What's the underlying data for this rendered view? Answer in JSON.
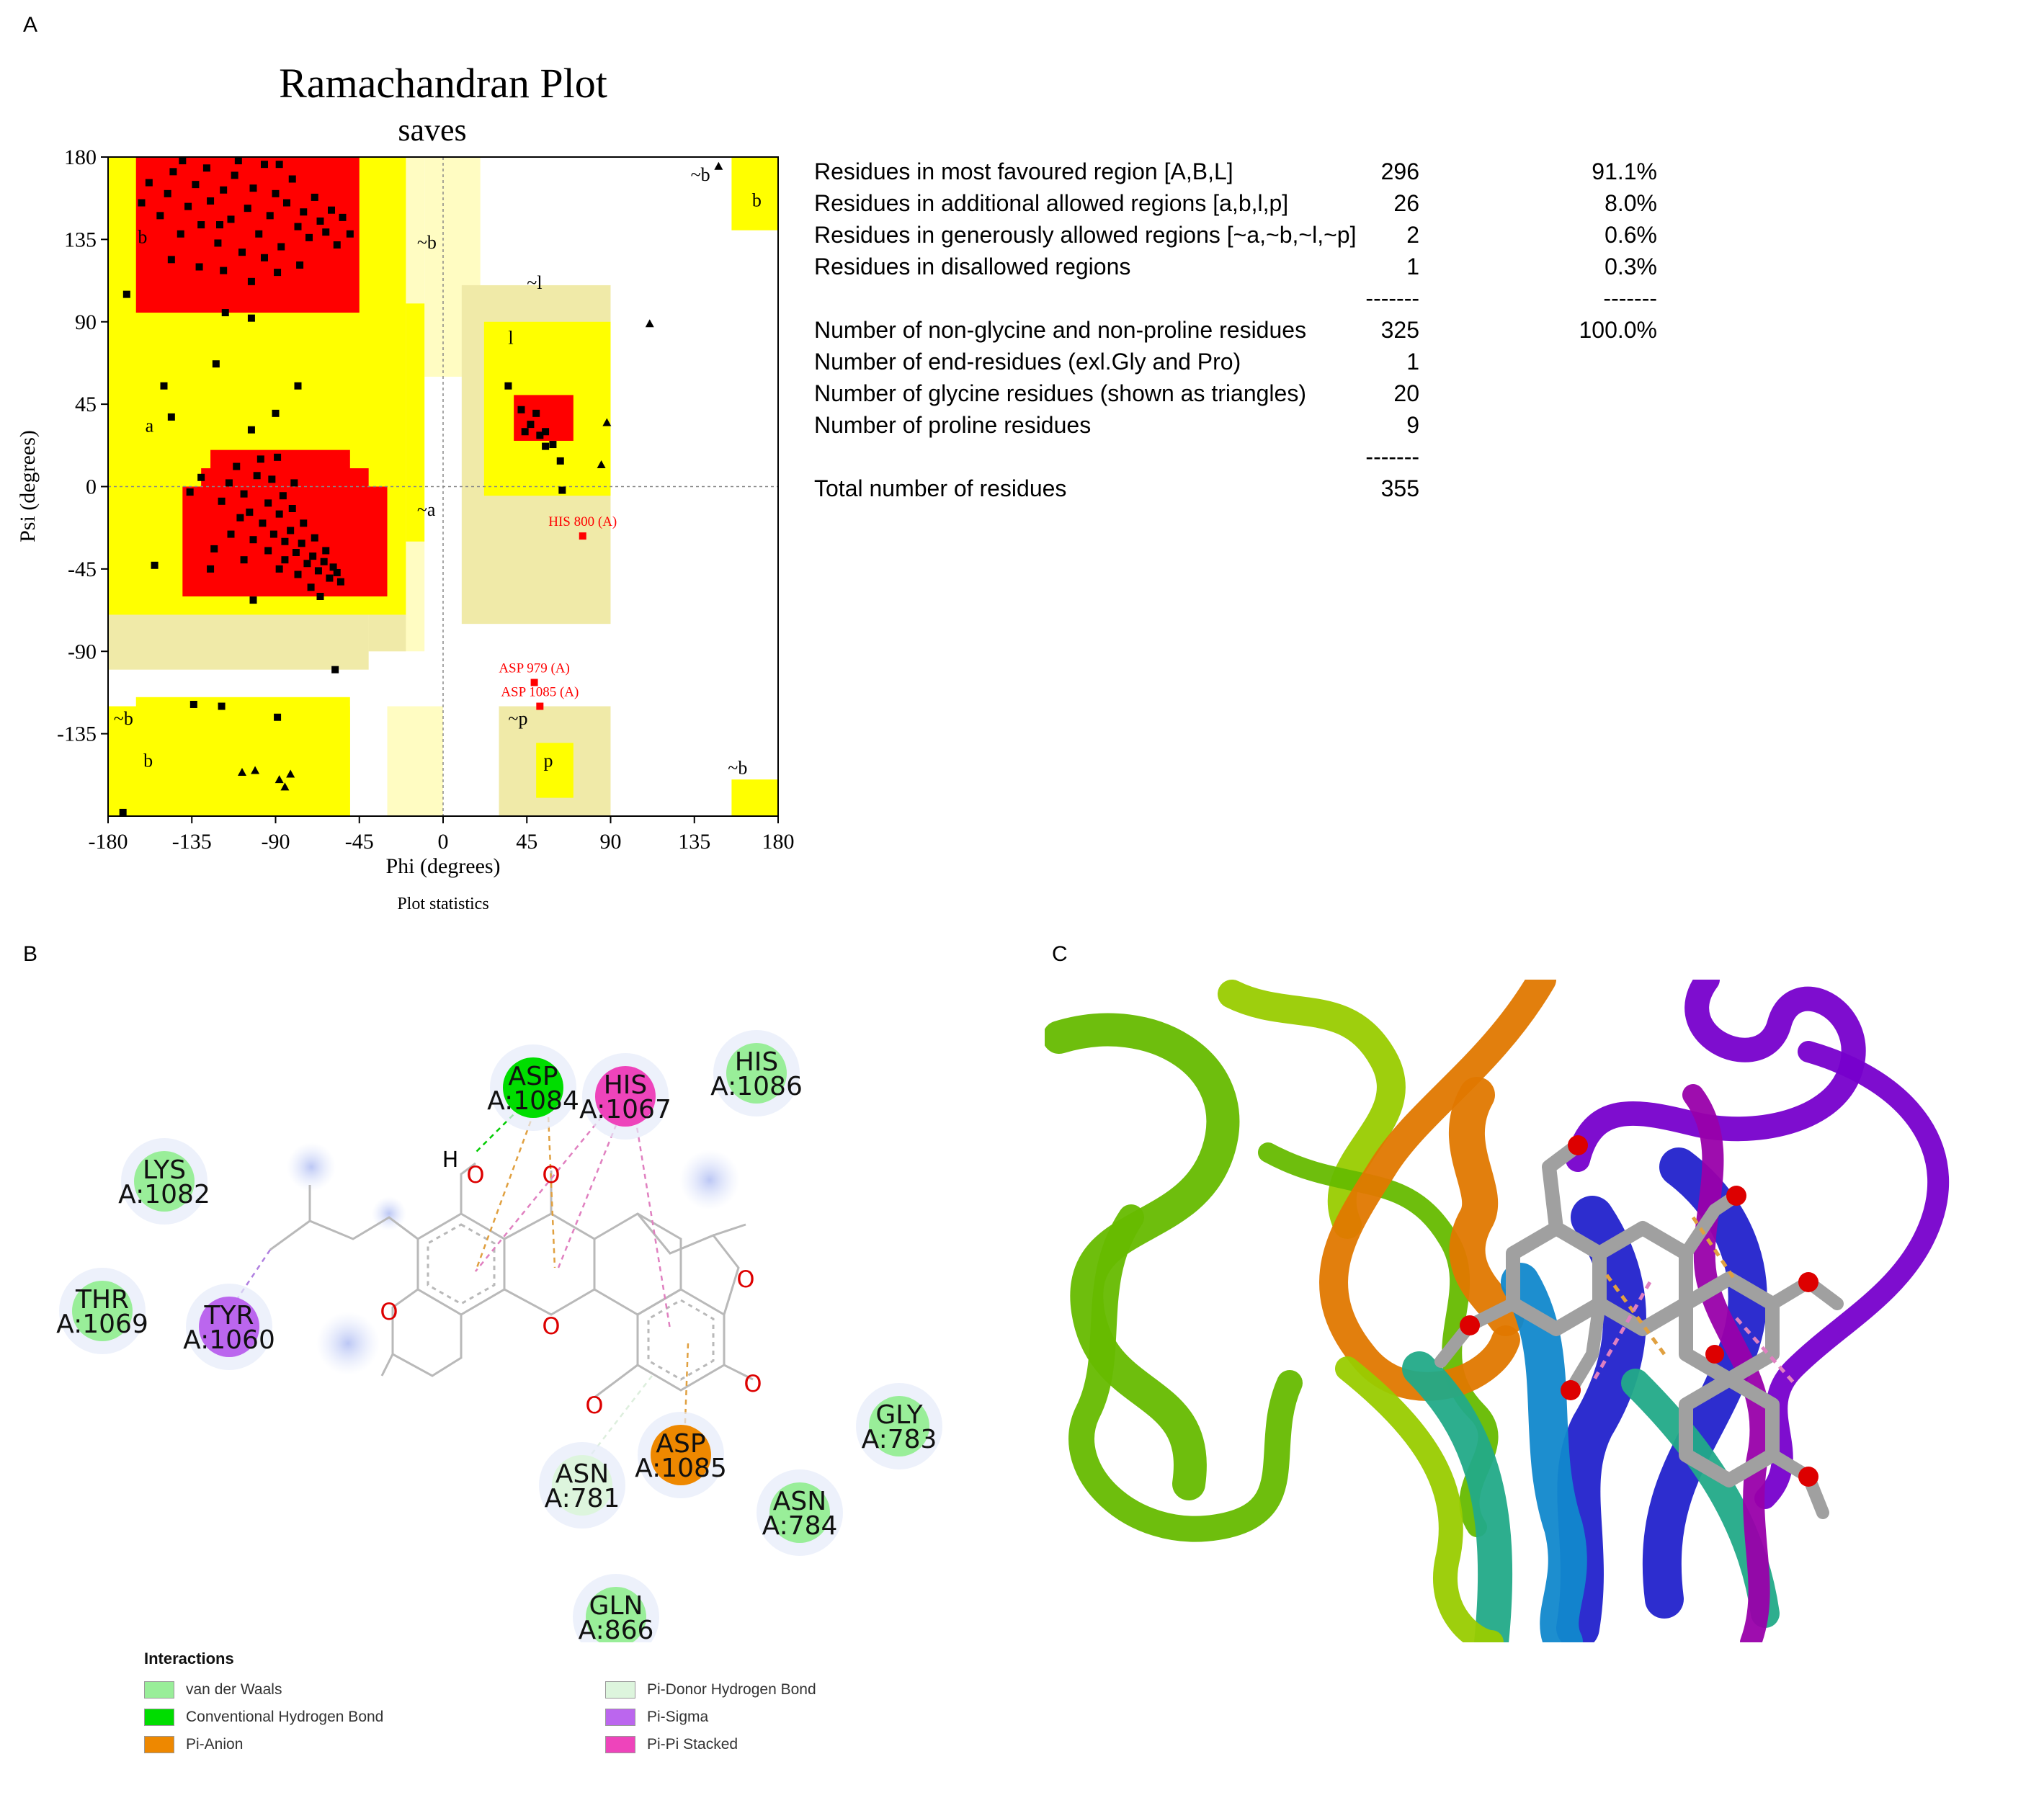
{
  "panels": {
    "a": "A",
    "b": "B",
    "c": "C"
  },
  "colors": {
    "core": "#ff0000",
    "allowed": "#ffff00",
    "generous": "#f0eaa8",
    "outer": "#fffcc2",
    "point": "#000000",
    "outlier": "#ff0000"
  },
  "chart_data": {
    "type": "scatter",
    "title": "Ramachandran Plot",
    "subtitle": "saves",
    "xlabel": "Phi (degrees)",
    "ylabel": "Psi (degrees)",
    "caption": "Plot statistics",
    "xlim": [
      -180,
      180
    ],
    "ylim": [
      -180,
      180
    ],
    "x_ticks": [
      "-180",
      "-135",
      "-90",
      "-45",
      "0",
      "45",
      "90",
      "135",
      "180"
    ],
    "y_ticks": [
      "180",
      "135",
      "90",
      "45",
      "0",
      "-45",
      "-90",
      "-135"
    ],
    "region_labels": [
      {
        "text": "b",
        "phi": -164,
        "psi": 133
      },
      {
        "text": "a",
        "phi": -160,
        "psi": 30
      },
      {
        "text": "~b",
        "phi": -14,
        "psi": 130
      },
      {
        "text": "~a",
        "phi": -14,
        "psi": -16
      },
      {
        "text": "~l",
        "phi": 45,
        "psi": 108
      },
      {
        "text": "l",
        "phi": 35,
        "psi": 78
      },
      {
        "text": "~p",
        "phi": 35,
        "psi": -130
      },
      {
        "text": "p",
        "phi": 54,
        "psi": -153
      },
      {
        "text": "~b",
        "phi": -177,
        "psi": -130
      },
      {
        "text": "b",
        "phi": -161,
        "psi": -153
      },
      {
        "text": "~b",
        "phi": 133,
        "psi": 167
      },
      {
        "text": "b",
        "phi": 166,
        "psi": 153
      },
      {
        "text": "~b",
        "phi": 153,
        "psi": -157
      }
    ],
    "labeled_outliers": [
      {
        "name": "HIS 800 (A)",
        "phi": 75,
        "psi": -27
      },
      {
        "name": "ASP 979 (A)",
        "phi": 49,
        "psi": -107
      },
      {
        "name": "ASP 1085 (A)",
        "phi": 52,
        "psi": -120
      }
    ],
    "residues": [
      [
        -162,
        155
      ],
      [
        -158,
        166
      ],
      [
        -152,
        148
      ],
      [
        -148,
        160
      ],
      [
        -145,
        172
      ],
      [
        -141,
        138
      ],
      [
        -137,
        153
      ],
      [
        -133,
        165
      ],
      [
        -130,
        143
      ],
      [
        -127,
        174
      ],
      [
        -125,
        156
      ],
      [
        -121,
        133
      ],
      [
        -118,
        162
      ],
      [
        -114,
        146
      ],
      [
        -112,
        170
      ],
      [
        -108,
        128
      ],
      [
        -105,
        152
      ],
      [
        -102,
        163
      ],
      [
        -99,
        138
      ],
      [
        -96,
        176
      ],
      [
        -93,
        148
      ],
      [
        -90,
        160
      ],
      [
        -87,
        131
      ],
      [
        -84,
        155
      ],
      [
        -81,
        168
      ],
      [
        -78,
        142
      ],
      [
        -75,
        150
      ],
      [
        -72,
        136
      ],
      [
        -69,
        158
      ],
      [
        -66,
        145
      ],
      [
        -63,
        139
      ],
      [
        -60,
        151
      ],
      [
        -57,
        132
      ],
      [
        -54,
        147
      ],
      [
        -50,
        138
      ],
      [
        -146,
        124
      ],
      [
        -131,
        120
      ],
      [
        -118,
        118
      ],
      [
        -103,
        112
      ],
      [
        -89,
        117
      ],
      [
        -77,
        121
      ],
      [
        -120,
        143
      ],
      [
        -96,
        125
      ],
      [
        -110,
        178
      ],
      [
        -140,
        178
      ],
      [
        -88,
        176
      ],
      [
        -119,
        -8
      ],
      [
        -115,
        2
      ],
      [
        -111,
        11
      ],
      [
        -107,
        -4
      ],
      [
        -104,
        -14
      ],
      [
        -100,
        6
      ],
      [
        -97,
        -20
      ],
      [
        -94,
        -9
      ],
      [
        -91,
        -26
      ],
      [
        -88,
        -15
      ],
      [
        -85,
        -30
      ],
      [
        -82,
        -24
      ],
      [
        -79,
        -36
      ],
      [
        -76,
        -31
      ],
      [
        -73,
        -42
      ],
      [
        -70,
        -38
      ],
      [
        -67,
        -46
      ],
      [
        -64,
        -41
      ],
      [
        -61,
        -50
      ],
      [
        -59,
        -44
      ],
      [
        -57,
        -47
      ],
      [
        -55,
        -52
      ],
      [
        -63,
        -35
      ],
      [
        -69,
        -28
      ],
      [
        -75,
        -20
      ],
      [
        -81,
        -12
      ],
      [
        -86,
        -5
      ],
      [
        -92,
        4
      ],
      [
        -98,
        15
      ],
      [
        -109,
        -17
      ],
      [
        -114,
        -26
      ],
      [
        -123,
        -34
      ],
      [
        -85,
        -40
      ],
      [
        -78,
        -48
      ],
      [
        -71,
        -55
      ],
      [
        -94,
        -35
      ],
      [
        -102,
        -29
      ],
      [
        -107,
        -40
      ],
      [
        -89,
        16
      ],
      [
        -80,
        2
      ],
      [
        -130,
        5
      ],
      [
        -136,
        -3
      ],
      [
        -150,
        55
      ],
      [
        -146,
        38
      ],
      [
        -122,
        67
      ],
      [
        -103,
        31
      ],
      [
        -90,
        40
      ],
      [
        -78,
        55
      ],
      [
        -117,
        95
      ],
      [
        -103,
        92
      ],
      [
        -170,
        105
      ],
      [
        -155,
        -43
      ],
      [
        -125,
        -45
      ],
      [
        -102,
        -62
      ],
      [
        -88,
        -45
      ],
      [
        -66,
        -60
      ],
      [
        -58,
        -100
      ],
      [
        -134,
        -119
      ],
      [
        -119,
        -120
      ],
      [
        -89,
        -126
      ],
      [
        -172,
        -178
      ],
      [
        42,
        42
      ],
      [
        47,
        34
      ],
      [
        50,
        40
      ],
      [
        55,
        30
      ],
      [
        59,
        23
      ],
      [
        63,
        14
      ],
      [
        44,
        30
      ],
      [
        52,
        28
      ],
      [
        55,
        22
      ],
      [
        64,
        -2
      ],
      [
        35,
        55
      ]
    ],
    "glycine": [
      [
        -108,
        -156
      ],
      [
        -101,
        -155
      ],
      [
        -88,
        -160
      ],
      [
        -85,
        -164
      ],
      [
        -82,
        -157
      ],
      [
        148,
        175
      ],
      [
        111,
        89
      ],
      [
        88,
        35
      ],
      [
        85,
        12
      ]
    ],
    "statistics": [
      {
        "label": "Residues in most favoured region [A,B,L]",
        "count": "296",
        "percent": "91.1%"
      },
      {
        "label": "Residues in additional allowed regions [a,b,l,p]",
        "count": "26",
        "percent": "8.0%"
      },
      {
        "label": "Residues in generously allowed regions [~a,~b,~l,~p]",
        "count": "2",
        "percent": "0.6%"
      },
      {
        "label": "Residues in disallowed regions",
        "count": "1",
        "percent": "0.3%"
      },
      {
        "label": "",
        "count": "-------",
        "percent": "-------"
      },
      {
        "label": "Number of non-glycine and non-proline residues",
        "count": "325",
        "percent": "100.0%"
      },
      {
        "label": "Number of end-residues (exl.Gly and Pro)",
        "count": "1",
        "percent": ""
      },
      {
        "label": "Number of glycine residues (shown as triangles)",
        "count": "20",
        "percent": ""
      },
      {
        "label": "Number of proline residues",
        "count": "9",
        "percent": ""
      },
      {
        "label": "",
        "count": "-------",
        "percent": ""
      },
      {
        "label": "Total number of residues",
        "count": "355",
        "percent": ""
      }
    ]
  },
  "interaction_residues": [
    {
      "name": "ASP",
      "chain": "A:1084",
      "type": "Conventional Hydrogen Bond"
    },
    {
      "name": "HIS",
      "chain": "A:1067",
      "type": "Pi-Pi Stacked"
    },
    {
      "name": "HIS",
      "chain": "A:1086",
      "type": "van der Waals"
    },
    {
      "name": "LYS",
      "chain": "A:1082",
      "type": "van der Waals"
    },
    {
      "name": "THR",
      "chain": "A:1069",
      "type": "van der Waals"
    },
    {
      "name": "TYR",
      "chain": "A:1060",
      "type": "Pi-Sigma"
    },
    {
      "name": "GLY",
      "chain": "A:783",
      "type": "van der Waals"
    },
    {
      "name": "ASP",
      "chain": "A:1085",
      "type": "Pi-Anion"
    },
    {
      "name": "ASN",
      "chain": "A:781",
      "type": "Pi-Donor Hydrogen Bond"
    },
    {
      "name": "ASN",
      "chain": "A:784",
      "type": "van der Waals"
    },
    {
      "name": "GLN",
      "chain": "A:866",
      "type": "van der Waals"
    }
  ],
  "ligand_atoms": {
    "oxygen": "O",
    "hydrogen": "H"
  },
  "legend": {
    "title": "Interactions",
    "items": [
      {
        "label": "van der Waals",
        "color": "#99ee99"
      },
      {
        "label": "Pi-Donor Hydrogen Bond",
        "color": "#ddf5dd"
      },
      {
        "label": "Conventional Hydrogen Bond",
        "color": "#00dd00"
      },
      {
        "label": "Pi-Sigma",
        "color": "#bb66ee"
      },
      {
        "label": "Pi-Anion",
        "color": "#ee8800"
      },
      {
        "label": "Pi-Pi Stacked",
        "color": "#ee44bb"
      }
    ]
  },
  "molecule_view": {
    "ribbon_colors": [
      "#66bb00",
      "#99cc00",
      "#e07800",
      "#7700cc",
      "#2222cc",
      "#1188cc",
      "#22aa88",
      "#9900aa"
    ],
    "ligand_color": "#a0a0a0"
  }
}
